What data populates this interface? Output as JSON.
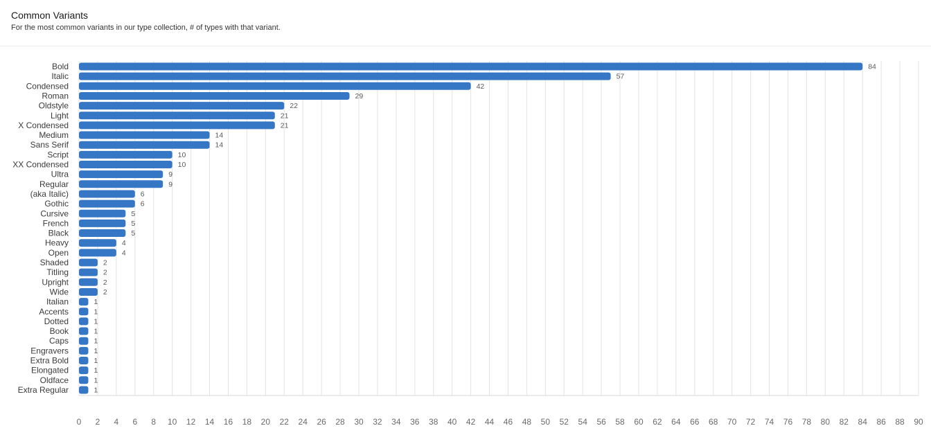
{
  "header": {
    "title": "Common Variants",
    "subtitle": "For the most common variants in our type collection, # of types with that variant."
  },
  "colors": {
    "bar": "#3577c4",
    "grid": "#e3e3e3"
  },
  "chart_data": {
    "type": "bar",
    "orientation": "horizontal",
    "title": "Common Variants",
    "subtitle": "For the most common variants in our type collection, # of types with that variant.",
    "categories": [
      "Bold",
      "Italic",
      "Condensed",
      "Roman",
      "Oldstyle",
      "Light",
      "X Condensed",
      "Medium",
      "Sans Serif",
      "Script",
      "XX Condensed",
      "Ultra",
      "Regular",
      "(aka Italic)",
      "Gothic",
      "Cursive",
      "French",
      "Black",
      "Heavy",
      "Open",
      "Shaded",
      "Titling",
      "Upright",
      "Wide",
      "Italian",
      "Accents",
      "Dotted",
      "Book",
      "Caps",
      "Engravers",
      "Extra Bold",
      "Elongated",
      "Oldface",
      "Extra Regular"
    ],
    "values": [
      84,
      57,
      42,
      29,
      22,
      21,
      21,
      14,
      14,
      10,
      10,
      9,
      9,
      6,
      6,
      5,
      5,
      5,
      4,
      4,
      2,
      2,
      2,
      2,
      1,
      1,
      1,
      1,
      1,
      1,
      1,
      1,
      1,
      1
    ],
    "xlim": [
      0,
      90
    ],
    "xticks": [
      0,
      2,
      4,
      6,
      8,
      10,
      12,
      14,
      16,
      18,
      20,
      22,
      24,
      26,
      28,
      30,
      32,
      34,
      36,
      38,
      40,
      42,
      44,
      46,
      48,
      50,
      52,
      54,
      56,
      58,
      60,
      62,
      64,
      66,
      68,
      70,
      72,
      74,
      76,
      78,
      80,
      82,
      84,
      86,
      88,
      90
    ],
    "xlabel": "",
    "ylabel": "",
    "grid": true,
    "data_labels": true
  }
}
